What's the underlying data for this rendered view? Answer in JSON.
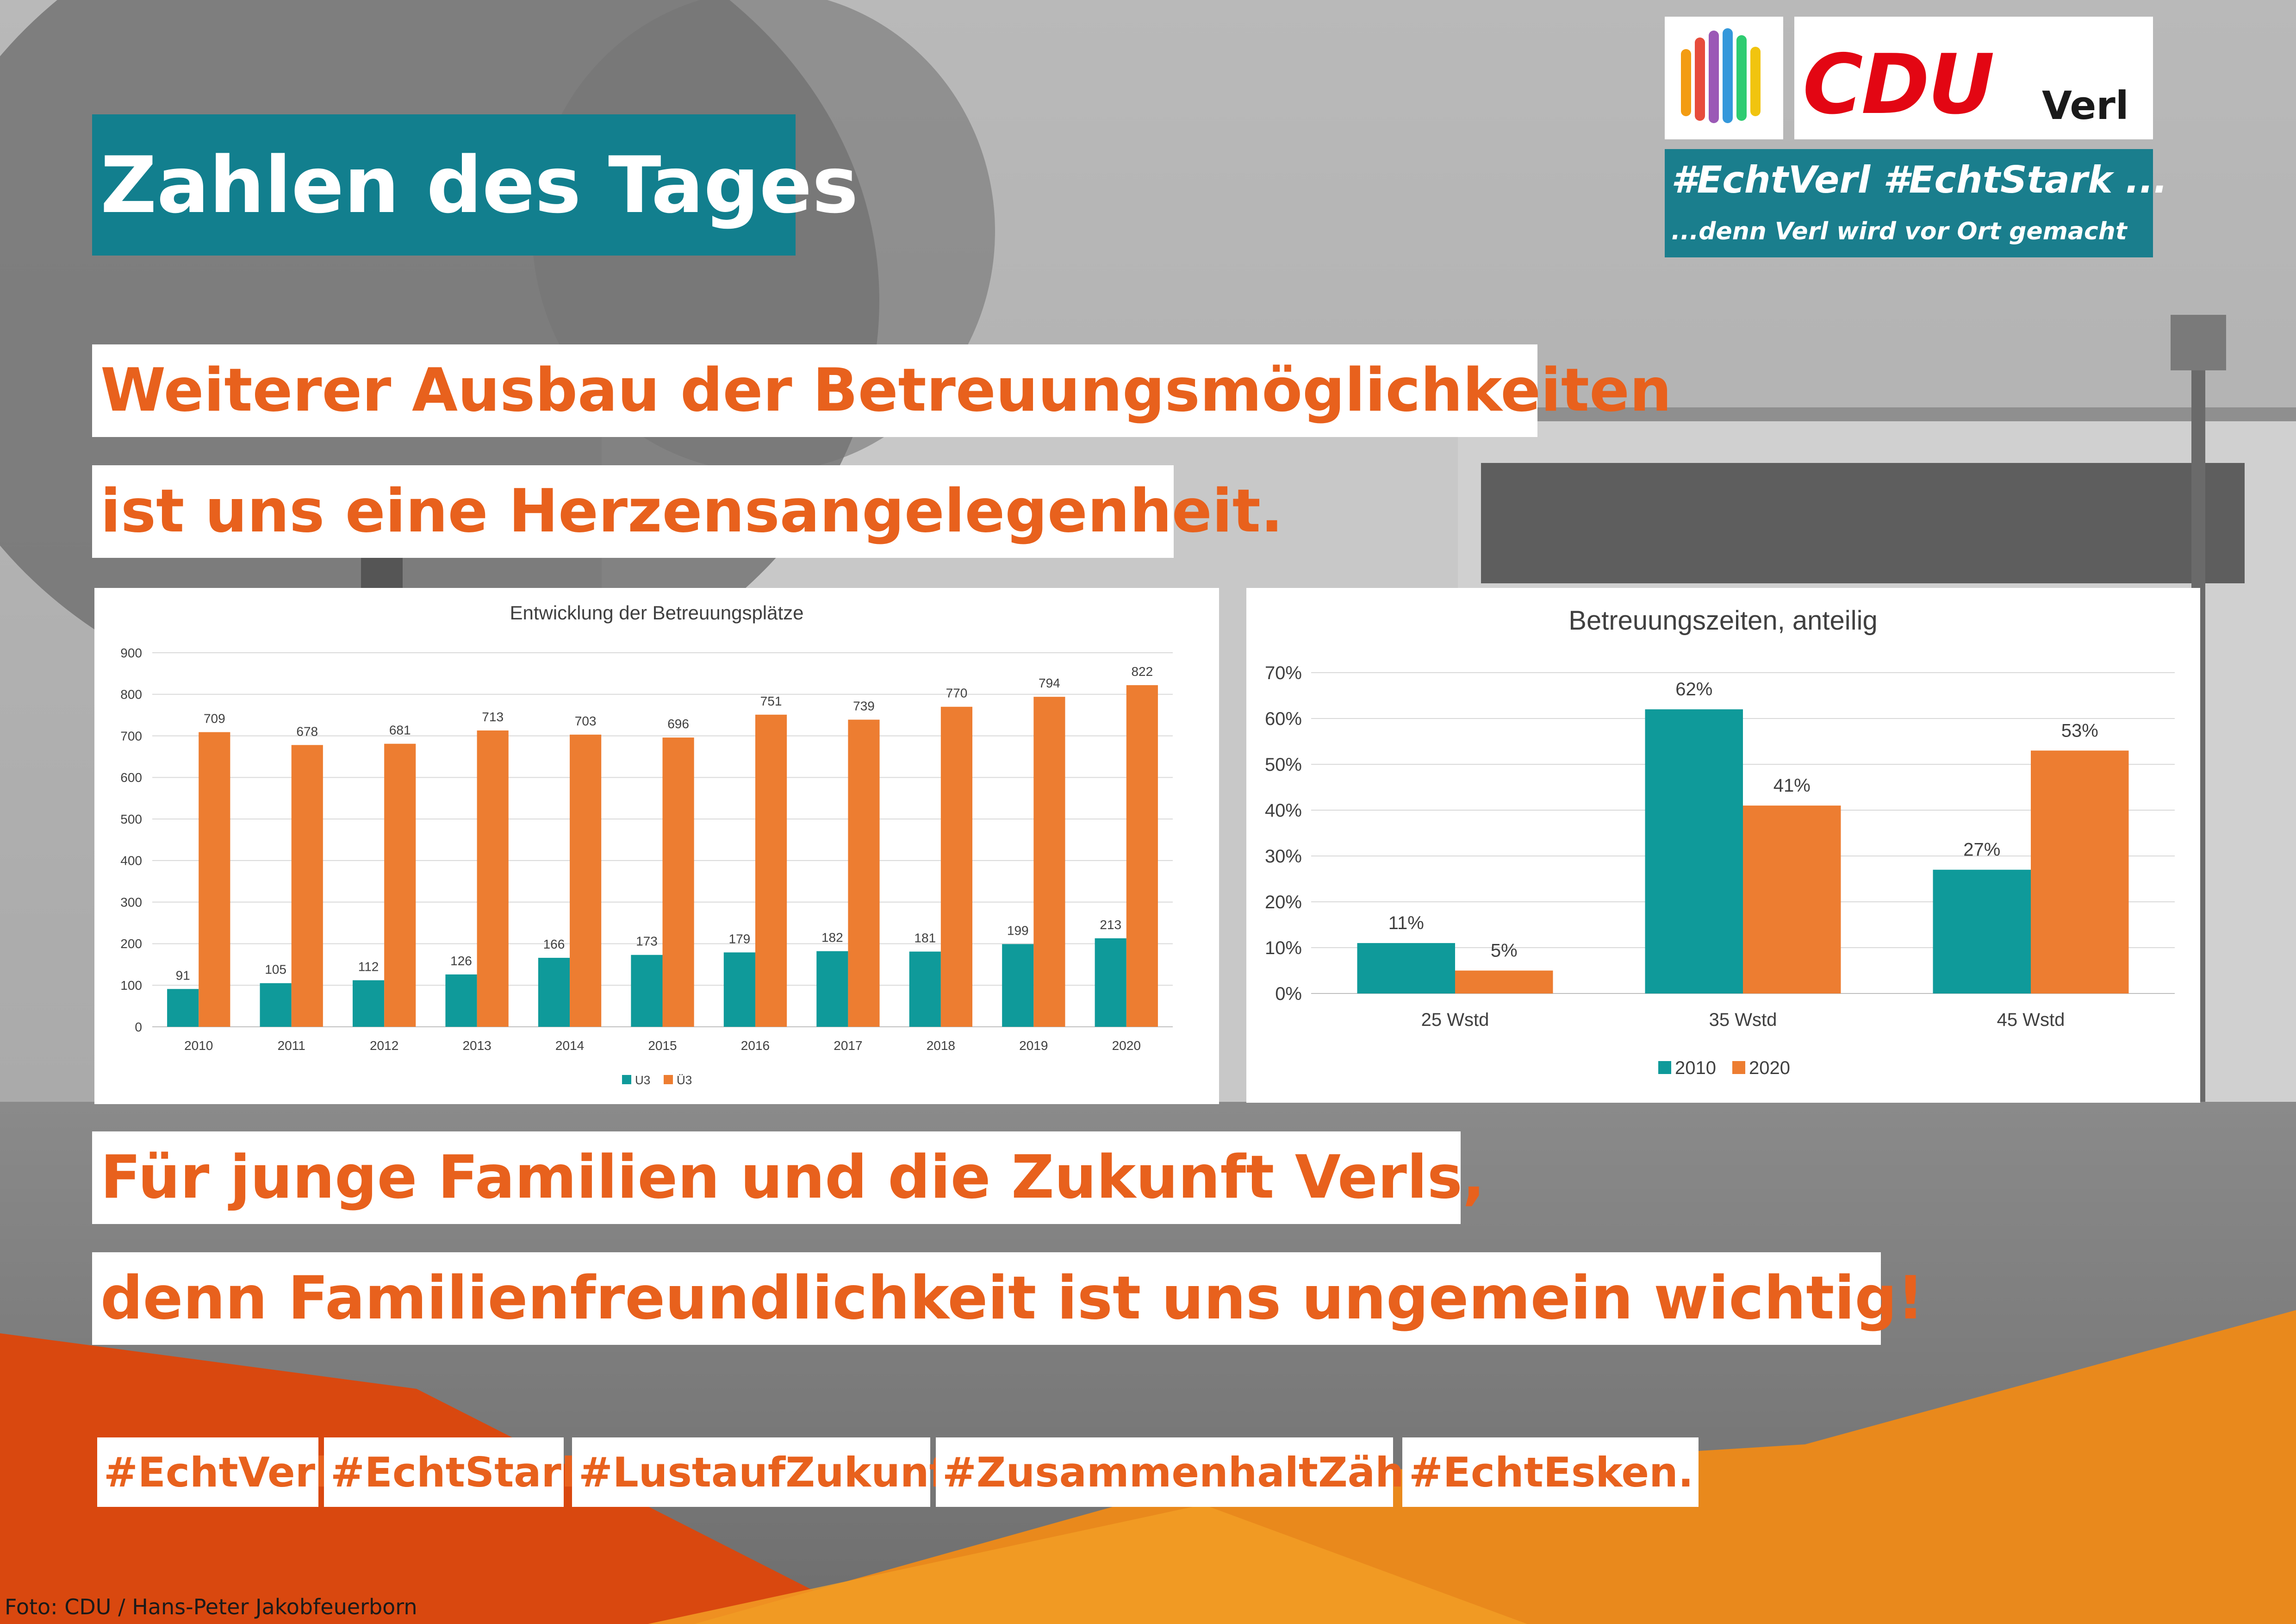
{
  "header": {
    "title": "Zahlen des Tages"
  },
  "logo": {
    "party": "CDU",
    "place": "Verl",
    "slogan_line1": "#EchtVerl #EchtStark ...",
    "slogan_line2": "...denn Verl wird vor Ort gemacht",
    "stripe_colors": [
      "#f39c12",
      "#e74c3c",
      "#9b59b6",
      "#3498db",
      "#2ecc71",
      "#f1c40f"
    ]
  },
  "headline": {
    "line1": "Weiterer Ausbau der Betreuungsmöglichkeiten",
    "line2": "ist uns eine Herzensangelegenheit."
  },
  "footer_text": {
    "line1": "Für junge Familien und die Zukunft Verls,",
    "line2": "denn Familienfreundlichkeit ist uns ungemein wichtig!"
  },
  "hashtags": [
    "#EchtVerl.",
    "#EchtStark",
    "#LustaufZukunft",
    "#ZusammenhaltZählt!",
    "#EchtEsken."
  ],
  "credit": "Foto: CDU / Hans-Peter Jakobfeuerborn",
  "colors": {
    "teal": "#0f9a9a",
    "orange": "#ed7d31",
    "headline_orange": "#e8611d",
    "title_teal": "#127f8e"
  },
  "chart_data": [
    {
      "type": "bar",
      "title": "Entwicklung der Betreuungsplätze",
      "categories": [
        "2010",
        "2011",
        "2012",
        "2013",
        "2014",
        "2015",
        "2016",
        "2017",
        "2018",
        "2019",
        "2020"
      ],
      "series": [
        {
          "name": "U3",
          "color": "#0f9a9a",
          "values": [
            91,
            105,
            112,
            126,
            166,
            173,
            179,
            182,
            181,
            199,
            213
          ]
        },
        {
          "name": "Ü3",
          "color": "#ed7d31",
          "values": [
            709,
            678,
            681,
            713,
            703,
            696,
            751,
            739,
            770,
            794,
            822
          ]
        }
      ],
      "ylim": [
        0,
        900
      ],
      "yticks": [
        "0",
        "100",
        "200",
        "300",
        "400",
        "500",
        "600",
        "700",
        "800",
        "900"
      ],
      "grid": true,
      "legend": "bottom"
    },
    {
      "type": "bar",
      "title": "Betreuungszeiten, anteilig",
      "categories": [
        "25 Wstd",
        "35 Wstd",
        "45 Wstd"
      ],
      "series": [
        {
          "name": "2010",
          "color": "#0f9a9a",
          "values": [
            11,
            62,
            27
          ],
          "labels": [
            "11%",
            "62%",
            "27%"
          ]
        },
        {
          "name": "2020",
          "color": "#ed7d31",
          "values": [
            5,
            41,
            53
          ],
          "labels": [
            "5%",
            "41%",
            "53%"
          ]
        }
      ],
      "ylim": [
        0,
        70
      ],
      "yticks": [
        "0%",
        "10%",
        "20%",
        "30%",
        "40%",
        "50%",
        "60%",
        "70%"
      ],
      "grid": true,
      "legend": "bottom"
    }
  ]
}
